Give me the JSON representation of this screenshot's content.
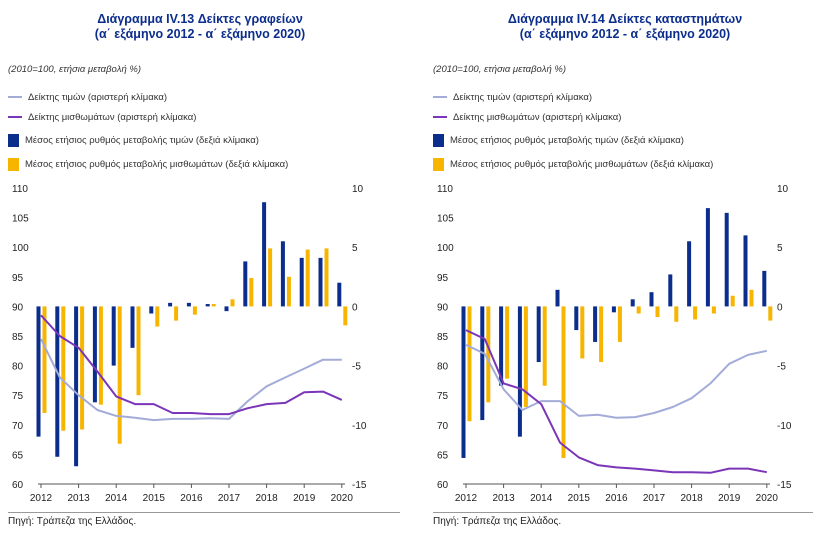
{
  "colors": {
    "price_line": "#a3acd8",
    "wage_line": "#7b35b8",
    "price_bar": "#0b2d8c",
    "wage_bar": "#f7b500",
    "title": "#0b2d8c"
  },
  "source": "Πηγή: Τράπεζα της Ελλάδος.",
  "chart_data": [
    {
      "type": "bar+line",
      "title_line1": "Διάγραμμα IV.13 Δείκτες γραφείων",
      "title_line2": "(α΄ εξάμηνο 2012 - α΄ εξάμηνο 2020)",
      "unit_note": "(2010=100, ετήσια μεταβολή %)",
      "legend": [
        "Δείκτης τιμών (αριστερή κλίμακα)",
        "Δείκτης μισθωμάτων (αριστερή κλίμακα)",
        "Μέσος ετήσιος ρυθμός μεταβολής τιμών (δεξιά κλίμακα)",
        "Μέσος ετήσιος ρυθμός μεταβολής μισθωμάτων (δεξιά κλίμακα)"
      ],
      "left_ylim": [
        60,
        110
      ],
      "right_ylim": [
        -15,
        10
      ],
      "left_ticks": [
        "110",
        "105",
        "100",
        "95",
        "90",
        "85",
        "80",
        "75",
        "70",
        "65",
        "60"
      ],
      "right_ticks": [
        "10",
        "5",
        "0",
        "-5",
        "-10",
        "-15"
      ],
      "x_labels": [
        "2012",
        "2013",
        "2014",
        "2015",
        "2016",
        "2017",
        "2018",
        "2019",
        "2020"
      ],
      "periods": [
        "2012H1",
        "2012H2",
        "2013H1",
        "2013H2",
        "2014H1",
        "2014H2",
        "2015H1",
        "2015H2",
        "2016H1",
        "2016H2",
        "2017H1",
        "2017H2",
        "2018H1",
        "2018H2",
        "2019H1",
        "2019H2",
        "2020H1"
      ],
      "price_index": [
        84.5,
        78.0,
        75.0,
        72.5,
        71.5,
        71.2,
        70.8,
        71.0,
        71.0,
        71.1,
        71.0,
        74.0,
        76.5,
        78.0,
        79.5,
        81.0,
        81.0
      ],
      "rent_index": [
        88.5,
        85.0,
        83.0,
        79.0,
        74.8,
        73.5,
        73.5,
        72.0,
        72.0,
        71.8,
        71.8,
        72.8,
        73.5,
        73.7,
        75.5,
        75.6,
        74.2
      ],
      "price_growth": [
        -11,
        -12.7,
        -13.5,
        -8.1,
        -5,
        -3.5,
        -0.6,
        0.3,
        0.3,
        0.2,
        -0.4,
        3.8,
        8.8,
        5.5,
        4.1,
        4.1,
        2.0
      ],
      "rent_growth": [
        -9,
        -10.5,
        -10.4,
        -8.3,
        -11.6,
        -7.5,
        -1.7,
        -1.2,
        -0.7,
        0.2,
        0.6,
        2.4,
        4.9,
        2.5,
        4.8,
        4.9,
        -1.6
      ]
    },
    {
      "type": "bar+line",
      "title_line1": "Διάγραμμα IV.14 Δείκτες καταστημάτων",
      "title_line2": "(α΄ εξάμηνο 2012 - α΄ εξάμηνο 2020)",
      "unit_note": "(2010=100, ετήσια μεταβολή %)",
      "legend": [
        "Δείκτης τιμών (αριστερή κλίμακα)",
        "Δείκτης μισθωμάτων (αριστερή κλίμακα)",
        "Μέσος ετήσιος ρυθμός μεταβολής τιμών (δεξιά κλίμακα)",
        "Μέσος ετήσιος ρυθμός μεταβολής μισθωμάτων (δεξιά κλίμακα)"
      ],
      "left_ylim": [
        60,
        110
      ],
      "right_ylim": [
        -15,
        10
      ],
      "left_ticks": [
        "110",
        "105",
        "100",
        "95",
        "90",
        "85",
        "80",
        "75",
        "70",
        "65",
        "60"
      ],
      "right_ticks": [
        "10",
        "5",
        "0",
        "-5",
        "-10",
        "-15"
      ],
      "x_labels": [
        "2012",
        "2013",
        "2014",
        "2015",
        "2016",
        "2017",
        "2018",
        "2019",
        "2020"
      ],
      "periods": [
        "2012H1",
        "2012H2",
        "2013H1",
        "2013H2",
        "2014H1",
        "2014H2",
        "2015H1",
        "2015H2",
        "2016H1",
        "2016H2",
        "2017H1",
        "2017H2",
        "2018H1",
        "2018H2",
        "2019H1",
        "2019H2",
        "2020H1"
      ],
      "price_index": [
        83.5,
        82.0,
        76.0,
        72.5,
        74.0,
        74.0,
        71.5,
        71.7,
        71.2,
        71.3,
        72.0,
        73.0,
        74.5,
        77.0,
        80.3,
        81.8,
        82.5
      ],
      "rent_index": [
        86.0,
        84.5,
        77.0,
        76.0,
        73.5,
        67.0,
        64.5,
        63.2,
        62.8,
        62.6,
        62.3,
        62.0,
        62.0,
        61.9,
        62.6,
        62.6,
        62.0
      ],
      "price_growth": [
        -12.8,
        -9.6,
        -6.7,
        -11,
        -4.7,
        1.4,
        -2,
        -3,
        -0.5,
        0.6,
        1.2,
        2.7,
        5.5,
        8.3,
        7.9,
        6.0,
        3.0
      ],
      "rent_growth": [
        -9.7,
        -8.1,
        -6.1,
        -8.5,
        -6.7,
        -12.8,
        -4.4,
        -4.7,
        -3,
        -0.6,
        -0.9,
        -1.3,
        -1.1,
        -0.6,
        0.9,
        1.4,
        -1.2
      ]
    }
  ]
}
